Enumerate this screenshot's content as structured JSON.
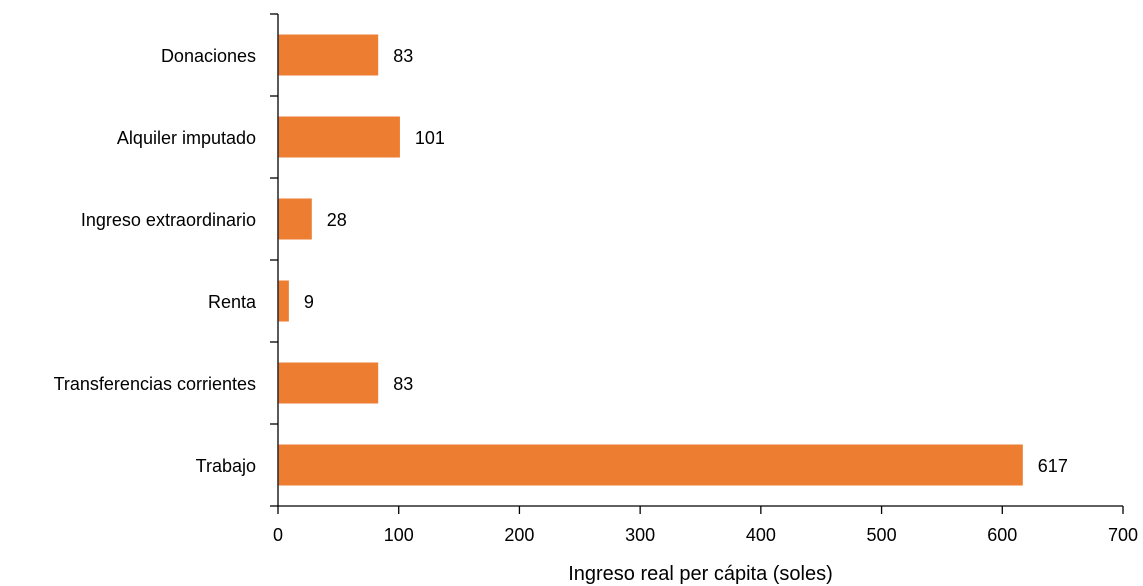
{
  "chart_data": {
    "type": "bar",
    "orientation": "horizontal",
    "categories": [
      "Donaciones",
      "Alquiler imputado",
      "Ingreso extraordinario",
      "Renta",
      "Transferencias corrientes",
      "Trabajo"
    ],
    "values": [
      83,
      101,
      28,
      9,
      83,
      617
    ],
    "data_labels": [
      "83",
      "101",
      "28",
      "9",
      "83",
      "617"
    ],
    "xlabel": "Ingreso real per cápita (soles)",
    "ylabel": "",
    "xlim": [
      0,
      700
    ],
    "xticks": [
      "0",
      "100",
      "200",
      "300",
      "400",
      "500",
      "600",
      "700"
    ],
    "grid": false,
    "legend": "none",
    "bar_color": "#ED7D31"
  }
}
